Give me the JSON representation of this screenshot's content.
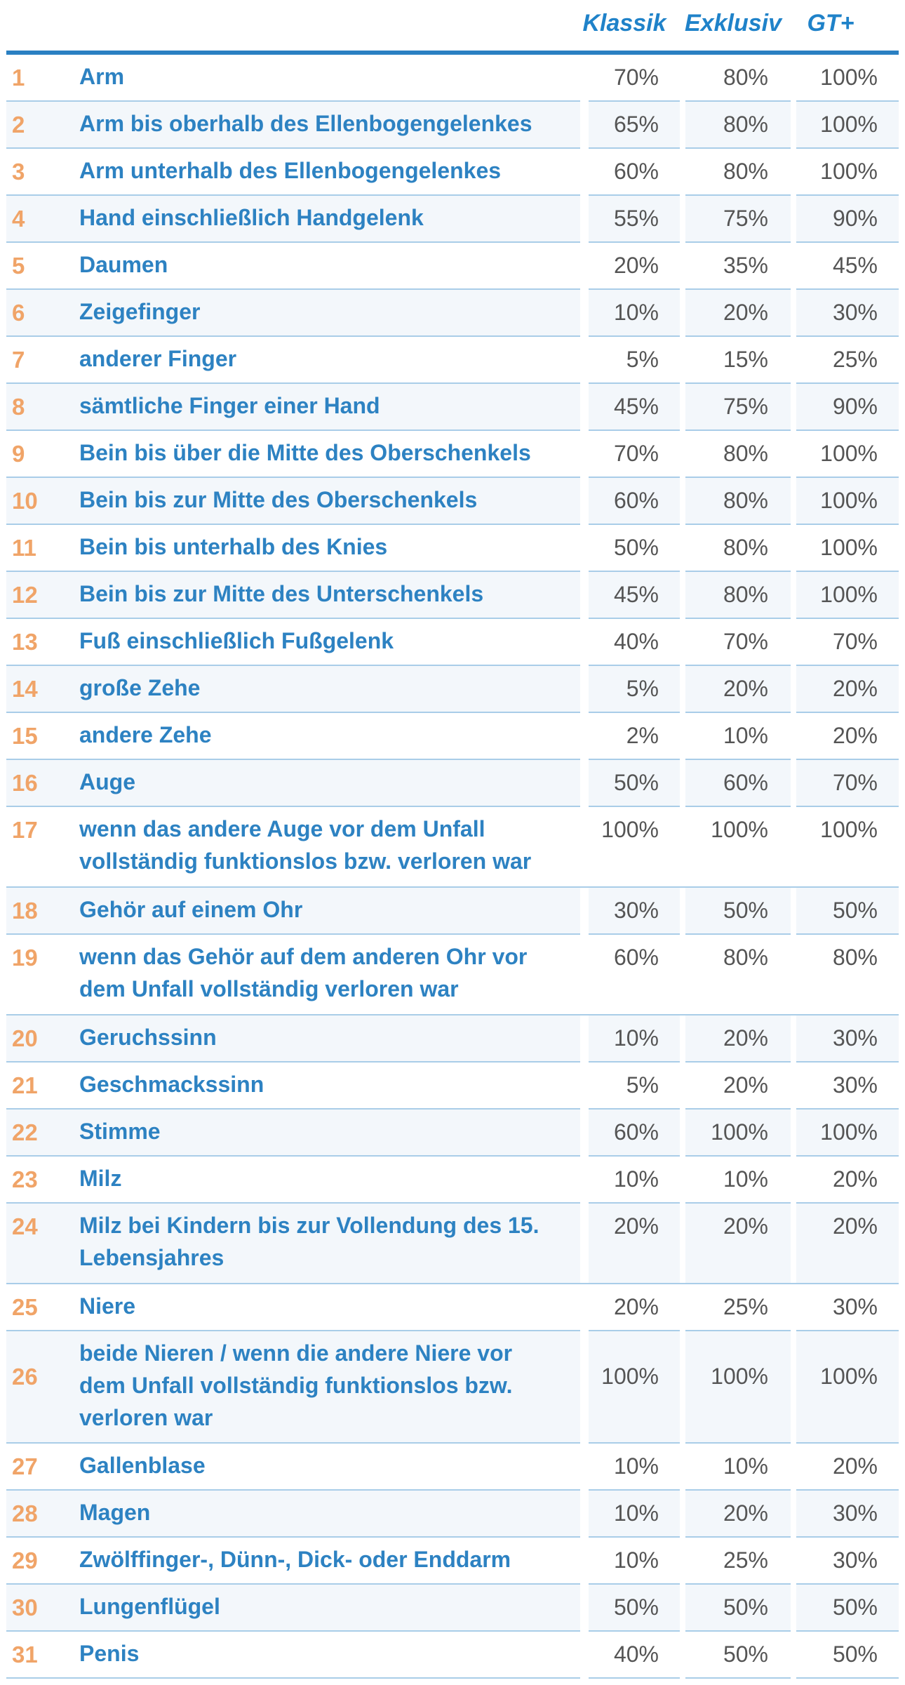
{
  "header": {
    "col1": "Klassik",
    "col2": "Exklusiv",
    "col3": "GT+"
  },
  "rows": [
    {
      "num": "1",
      "label": "Arm",
      "klassik": "70%",
      "exklusiv": "80%",
      "gt": "100%"
    },
    {
      "num": "2",
      "label": "Arm bis oberhalb des Ellenbogengelenkes",
      "klassik": "65%",
      "exklusiv": "80%",
      "gt": "100%"
    },
    {
      "num": "3",
      "label": "Arm unterhalb des Ellenbogengelenkes",
      "klassik": "60%",
      "exklusiv": "80%",
      "gt": "100%"
    },
    {
      "num": "4",
      "label": "Hand einschließlich Handgelenk",
      "klassik": "55%",
      "exklusiv": "75%",
      "gt": "90%"
    },
    {
      "num": "5",
      "label": "Daumen",
      "klassik": "20%",
      "exklusiv": "35%",
      "gt": "45%"
    },
    {
      "num": "6",
      "label": "Zeigefinger",
      "klassik": "10%",
      "exklusiv": "20%",
      "gt": "30%"
    },
    {
      "num": "7",
      "label": "anderer Finger",
      "klassik": "5%",
      "exklusiv": "15%",
      "gt": "25%"
    },
    {
      "num": "8",
      "label": "sämtliche Finger einer Hand",
      "klassik": "45%",
      "exklusiv": "75%",
      "gt": "90%"
    },
    {
      "num": "9",
      "label": "Bein bis über die Mitte des Oberschenkels",
      "klassik": "70%",
      "exklusiv": "80%",
      "gt": "100%"
    },
    {
      "num": "10",
      "label": "Bein bis zur Mitte des Oberschenkels",
      "klassik": "60%",
      "exklusiv": "80%",
      "gt": "100%"
    },
    {
      "num": "11",
      "label": "Bein bis unterhalb des Knies",
      "klassik": "50%",
      "exklusiv": "80%",
      "gt": "100%"
    },
    {
      "num": "12",
      "label": "Bein bis zur Mitte des Unterschenkels",
      "klassik": "45%",
      "exklusiv": "80%",
      "gt": "100%"
    },
    {
      "num": "13",
      "label": "Fuß einschließlich Fußgelenk",
      "klassik": "40%",
      "exklusiv": "70%",
      "gt": "70%"
    },
    {
      "num": "14",
      "label": "große Zehe",
      "klassik": "5%",
      "exklusiv": "20%",
      "gt": "20%"
    },
    {
      "num": "15",
      "label": "andere Zehe",
      "klassik": "2%",
      "exklusiv": "10%",
      "gt": "20%"
    },
    {
      "num": "16",
      "label": "Auge",
      "klassik": "50%",
      "exklusiv": "60%",
      "gt": "70%"
    },
    {
      "num": "17",
      "label": "wenn das andere Auge vor dem Unfall vollständig funktionslos bzw. verloren war",
      "klassik": "100%",
      "exklusiv": "100%",
      "gt": "100%"
    },
    {
      "num": "18",
      "label": "Gehör auf einem Ohr",
      "klassik": "30%",
      "exklusiv": "50%",
      "gt": "50%"
    },
    {
      "num": "19",
      "label": "wenn das Gehör auf dem anderen Ohr vor dem Unfall vollständig verloren war",
      "klassik": "60%",
      "exklusiv": "80%",
      "gt": "80%"
    },
    {
      "num": "20",
      "label": "Geruchssinn",
      "klassik": "10%",
      "exklusiv": "20%",
      "gt": "30%"
    },
    {
      "num": "21",
      "label": "Geschmackssinn",
      "klassik": "5%",
      "exklusiv": "20%",
      "gt": "30%"
    },
    {
      "num": "22",
      "label": "Stimme",
      "klassik": "60%",
      "exklusiv": "100%",
      "gt": "100%"
    },
    {
      "num": "23",
      "label": "Milz",
      "klassik": "10%",
      "exklusiv": "10%",
      "gt": "20%"
    },
    {
      "num": "24",
      "label": "Milz bei Kindern bis zur Vollendung des 15. Lebensjahres",
      "klassik": "20%",
      "exklusiv": "20%",
      "gt": "20%"
    },
    {
      "num": "25",
      "label": "Niere",
      "klassik": "20%",
      "exklusiv": "25%",
      "gt": "30%"
    },
    {
      "num": "26",
      "label": "beide Nieren / wenn die andere Niere vor dem Unfall vollständig funktionslos bzw. verloren war",
      "klassik": "100%",
      "exklusiv": "100%",
      "gt": "100%"
    },
    {
      "num": "27",
      "label": "Gallenblase",
      "klassik": "10%",
      "exklusiv": "10%",
      "gt": "20%"
    },
    {
      "num": "28",
      "label": "Magen",
      "klassik": "10%",
      "exklusiv": "20%",
      "gt": "30%"
    },
    {
      "num": "29",
      "label": "Zwölffinger-, Dünn-, Dick- oder Enddarm",
      "klassik": "10%",
      "exklusiv": "25%",
      "gt": "30%"
    },
    {
      "num": "30",
      "label": "Lungenflügel",
      "klassik": "50%",
      "exklusiv": "50%",
      "gt": "50%"
    },
    {
      "num": "31",
      "label": "Penis",
      "klassik": "40%",
      "exklusiv": "50%",
      "gt": "50%"
    }
  ]
}
